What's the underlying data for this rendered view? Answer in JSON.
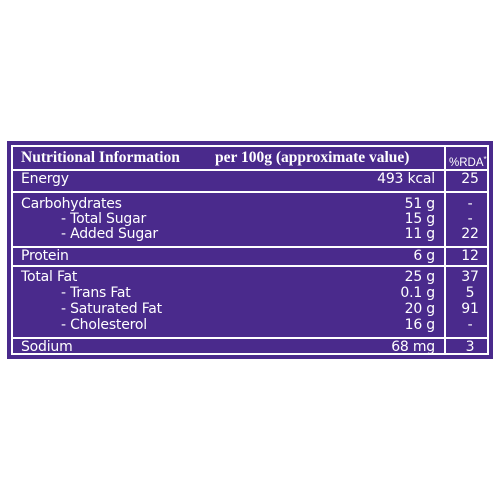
{
  "header": {
    "title": "Nutritional Information",
    "subtitle": "per 100g (approximate value)",
    "rda_label": "%RDA",
    "rda_mark": "*"
  },
  "rows": [
    {
      "label": "Energy",
      "value": "493 kcal",
      "rda": "25"
    },
    {
      "label": "Carbohydrates",
      "value": "51 g",
      "rda": "-"
    },
    {
      "label": "- Total Sugar",
      "value": "15 g",
      "rda": "-"
    },
    {
      "label": "- Added Sugar",
      "value": "11 g",
      "rda": "22"
    },
    {
      "label": "Protein",
      "value": "6 g",
      "rda": "12"
    },
    {
      "label": "Total Fat",
      "value": "25 g",
      "rda": "37"
    },
    {
      "label": "- Trans Fat",
      "value": "0.1 g",
      "rda": "5"
    },
    {
      "label": "- Saturated Fat",
      "value": "20 g",
      "rda": "91"
    },
    {
      "label": "- Cholesterol",
      "value": "16 g",
      "rda": "-"
    },
    {
      "label": "Sodium",
      "value": "68 mg",
      "rda": "3"
    }
  ],
  "colors": {
    "panel": "#4a2a8c",
    "text": "#ffffff"
  }
}
